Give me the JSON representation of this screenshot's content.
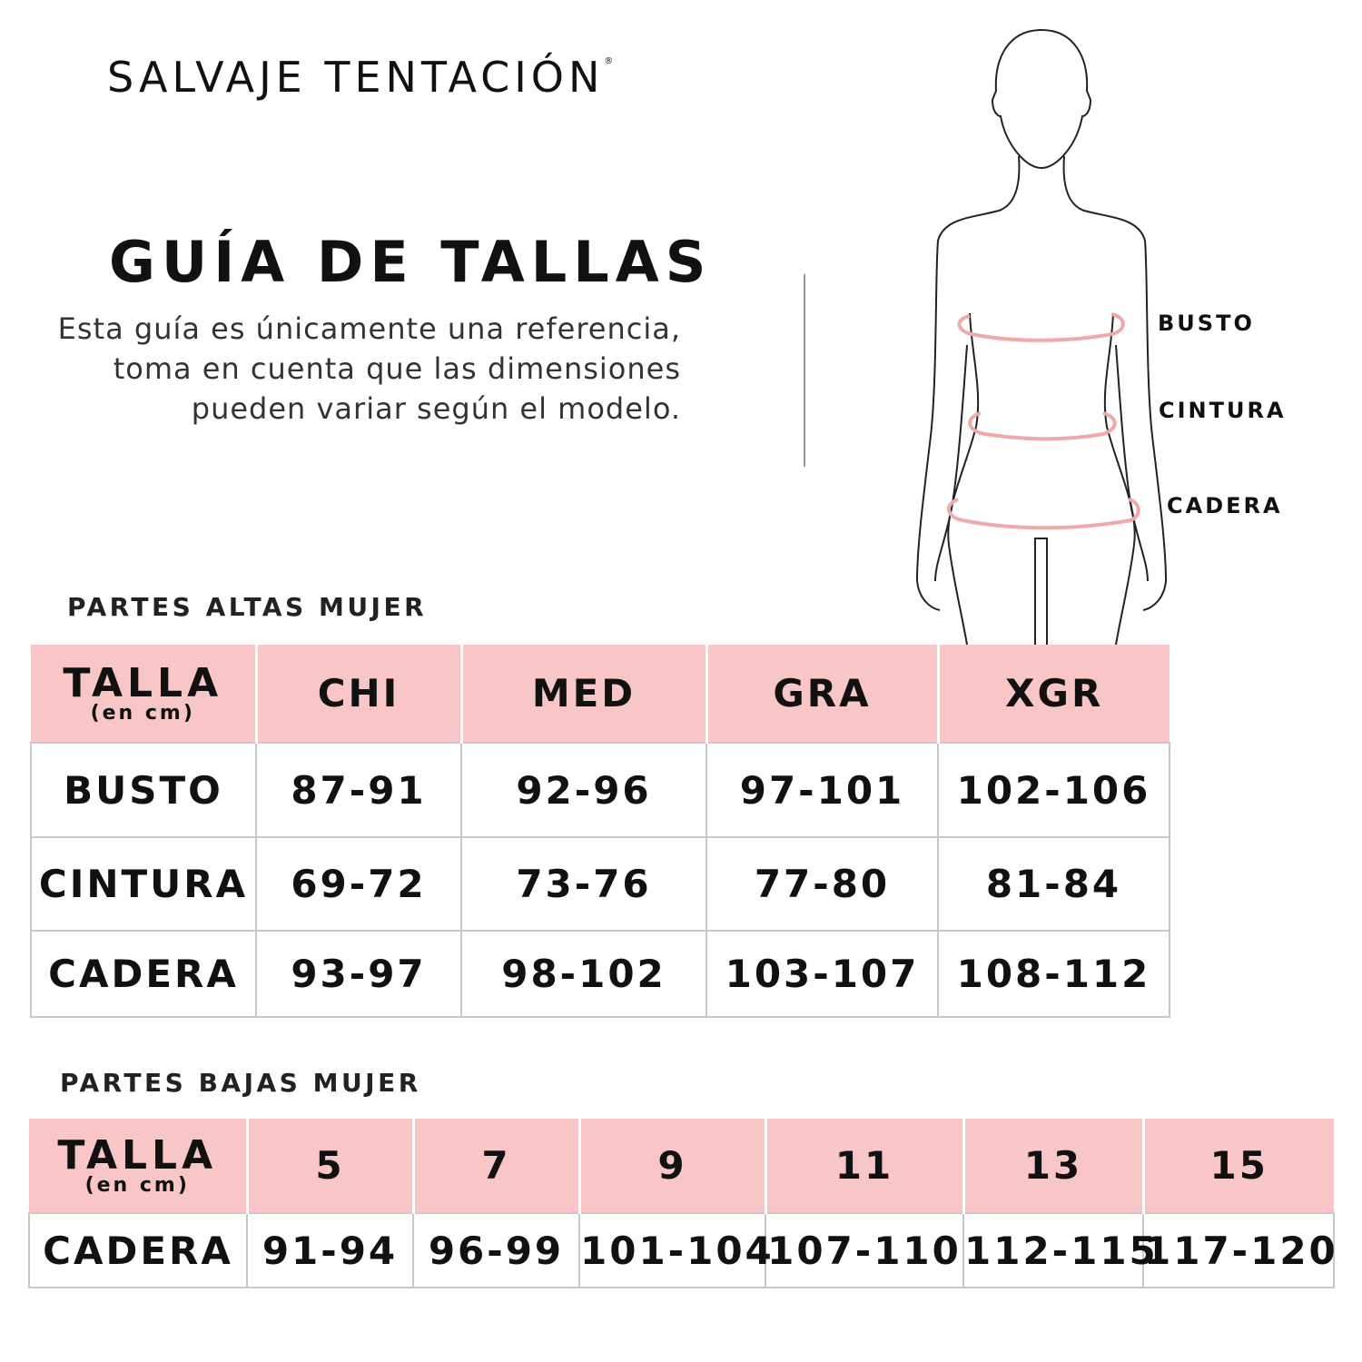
{
  "brand": {
    "name": "SALVAJE TENTACIÓN",
    "mark": "®"
  },
  "header": {
    "title": "GUÍA DE TALLAS",
    "description": "Esta guía es únicamente una referencia, toma en cuenta que las dimensiones pueden variar según el modelo."
  },
  "figure": {
    "labels": [
      "BUSTO",
      "CINTURA",
      "CADERA"
    ],
    "measure_color": "#f0a9a9"
  },
  "colors": {
    "header_bg": "#f8c6c6",
    "text": "#111111",
    "border": "#c8c8c8"
  },
  "upper": {
    "label": "PARTES ALTAS MUJER",
    "talla": "TALLA",
    "unit": "(en cm)",
    "sizes": [
      "CHI",
      "MED",
      "GRA",
      "XGR"
    ],
    "rows": [
      {
        "name": "BUSTO",
        "values": [
          "87-91",
          "92-96",
          "97-101",
          "102-106"
        ]
      },
      {
        "name": "CINTURA",
        "values": [
          "69-72",
          "73-76",
          "77-80",
          "81-84"
        ]
      },
      {
        "name": "CADERA",
        "values": [
          "93-97",
          "98-102",
          "103-107",
          "108-112"
        ]
      }
    ]
  },
  "lower": {
    "label": "PARTES BAJAS MUJER",
    "talla": "TALLA",
    "unit": "(en cm)",
    "sizes": [
      "5",
      "7",
      "9",
      "11",
      "13",
      "15"
    ],
    "rows": [
      {
        "name": "CADERA",
        "values": [
          "91-94",
          "96-99",
          "101-104",
          "107-110",
          "112-115",
          "117-120"
        ]
      }
    ]
  }
}
